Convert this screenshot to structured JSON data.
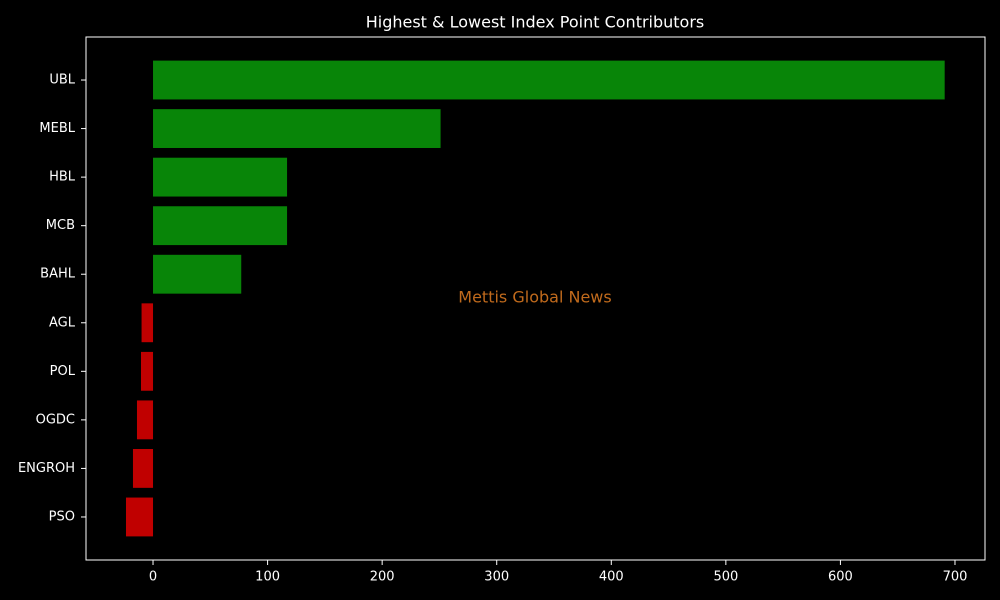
{
  "chart_data": {
    "type": "barh",
    "title": "Highest & Lowest Index Point Contributors",
    "annotation": "Mettis Global News",
    "categories": [
      "UBL",
      "MEBL",
      "HBL",
      "MCB",
      "BAHL",
      "AGL",
      "POL",
      "OGDC",
      "ENGROH",
      "PSO"
    ],
    "values": [
      691,
      251,
      117,
      117,
      77,
      -10,
      -10.5,
      -14,
      -17.5,
      -23.6
    ],
    "colors": [
      "#088508",
      "#088508",
      "#088508",
      "#088508",
      "#088508",
      "#c00000",
      "#c00000",
      "#c00000",
      "#c00000",
      "#c00000"
    ],
    "xlim": [
      -58.5,
      726.2
    ],
    "xticks": [
      0,
      100,
      200,
      300,
      400,
      500,
      600,
      700
    ],
    "grid": false
  }
}
